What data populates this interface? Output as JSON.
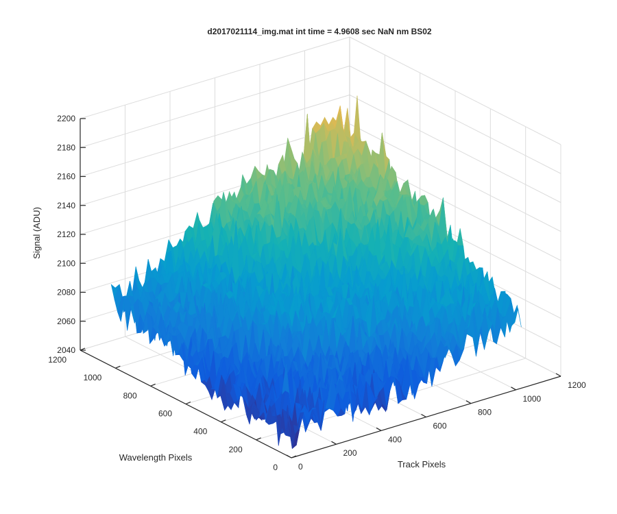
{
  "chart_data": {
    "type": "surface",
    "title": "d2017021114_img.mat int time = 4.9608 sec  NaN nm BS02",
    "xlabel": "Track Pixels",
    "ylabel": "Wavelength Pixels",
    "zlabel": "Signal (ADU)",
    "xlim": [
      0,
      1200
    ],
    "ylim": [
      0,
      1200
    ],
    "zlim": [
      2040,
      2200
    ],
    "xticks": [
      "0",
      "200",
      "400",
      "600",
      "800",
      "1000",
      "1200"
    ],
    "yticks": [
      "0",
      "200",
      "400",
      "600",
      "800",
      "1000",
      "1200"
    ],
    "zticks": [
      "2040",
      "2060",
      "2080",
      "2100",
      "2120",
      "2140",
      "2160",
      "2180",
      "2200"
    ],
    "grid": true,
    "colormap": "parula",
    "data_extent": {
      "x": [
        0,
        1024
      ],
      "y": [
        0,
        1024
      ]
    },
    "corner_signal": {
      "x0_y0": 2052,
      "x1024_y0": 2085,
      "x0_y1024": 2085,
      "x1024_y1024": 2165
    },
    "signal_range": [
      2040,
      2185
    ]
  }
}
